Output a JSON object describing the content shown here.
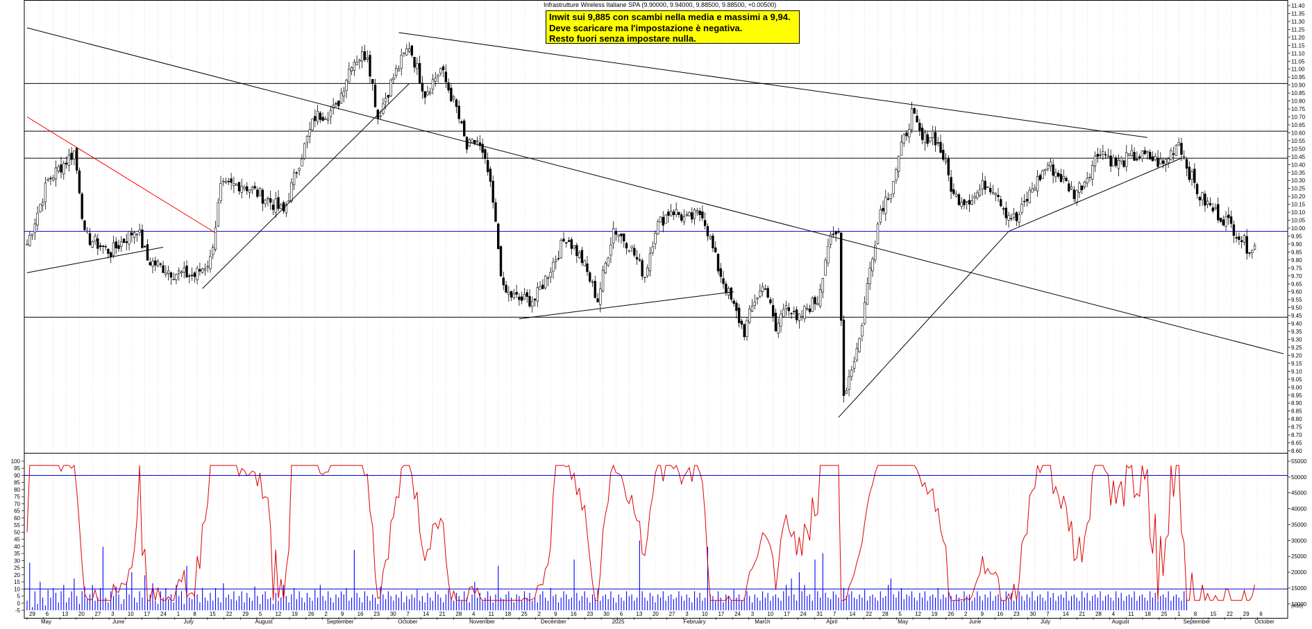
{
  "chart_data": [
    {
      "type": "candlestick",
      "title": "Infrastrutture Wireless Italiane SPA (9.90000, 9.94000, 9.88500, 9.88500, +0.00500)",
      "ylim": [
        8.6,
        11.4
      ],
      "y_tick_step": 0.05,
      "y_tick_labels": [
        "11.40",
        "11.35",
        "11.30",
        "11.25",
        "11.20",
        "11.15",
        "11.10",
        "11.05",
        "11.00",
        "10.95",
        "10.90",
        "10.85",
        "10.80",
        "10.75",
        "10.70",
        "10.65",
        "10.60",
        "10.55",
        "10.50",
        "10.45",
        "10.40",
        "10.35",
        "10.30",
        "10.25",
        "10.20",
        "10.15",
        "10.10",
        "10.05",
        "10.00",
        "9.95",
        "9.90",
        "9.85",
        "9.80",
        "9.75",
        "9.70",
        "9.65",
        "9.60",
        "9.55",
        "9.50",
        "9.45",
        "9.40",
        "9.35",
        "9.30",
        "9.25",
        "9.20",
        "9.15",
        "9.10",
        "9.05",
        "9.00",
        "8.95",
        "8.90",
        "8.85",
        "8.80",
        "8.75",
        "8.70",
        "8.65",
        "8.60"
      ],
      "grid": true,
      "horizontal_levels": [
        {
          "value": 10.91,
          "color": "#000000"
        },
        {
          "value": 10.61,
          "color": "#000000"
        },
        {
          "value": 10.44,
          "color": "#000000"
        },
        {
          "value": 9.98,
          "color": "#0000cc"
        },
        {
          "value": 9.44,
          "color": "#000000"
        }
      ],
      "trendlines": [
        {
          "from": {
            "day": 0,
            "price": 11.26
          },
          "to": {
            "day": 480,
            "price": 9.21
          },
          "color": "#000000"
        },
        {
          "from": {
            "day": 142,
            "price": 11.23
          },
          "to": {
            "day": 428,
            "price": 10.57
          },
          "color": "#000000"
        },
        {
          "from": {
            "day": 0,
            "price": 10.7
          },
          "to": {
            "day": 72,
            "price": 9.97
          },
          "color": "#ff0000"
        },
        {
          "from": {
            "day": 0,
            "price": 9.72
          },
          "to": {
            "day": 52,
            "price": 9.88
          },
          "color": "#000000"
        },
        {
          "from": {
            "day": 67,
            "price": 9.62
          },
          "to": {
            "day": 146,
            "price": 10.91
          },
          "color": "#000000"
        },
        {
          "from": {
            "day": 188,
            "price": 9.43
          },
          "to": {
            "day": 270,
            "price": 9.6
          },
          "color": "#000000"
        },
        {
          "from": {
            "day": 310,
            "price": 8.81
          },
          "to": {
            "day": 375,
            "price": 9.98
          },
          "color": "#000000"
        },
        {
          "from": {
            "day": 375,
            "price": 9.98
          },
          "to": {
            "day": 441,
            "price": 10.44
          },
          "color": "#000000"
        }
      ],
      "price_anchors": [
        [
          0,
          9.9
        ],
        [
          8,
          10.3
        ],
        [
          18,
          10.48
        ],
        [
          20,
          10.25
        ],
        [
          22,
          9.95
        ],
        [
          32,
          9.85
        ],
        [
          42,
          10.0
        ],
        [
          46,
          9.8
        ],
        [
          56,
          9.72
        ],
        [
          64,
          9.7
        ],
        [
          70,
          9.8
        ],
        [
          74,
          10.25
        ],
        [
          82,
          10.28
        ],
        [
          92,
          10.18
        ],
        [
          98,
          10.1
        ],
        [
          104,
          10.42
        ],
        [
          110,
          10.7
        ],
        [
          118,
          10.75
        ],
        [
          124,
          11.05
        ],
        [
          130,
          11.1
        ],
        [
          134,
          10.7
        ],
        [
          140,
          10.95
        ],
        [
          146,
          11.15
        ],
        [
          152,
          10.85
        ],
        [
          158,
          11.0
        ],
        [
          164,
          10.75
        ],
        [
          168,
          10.5
        ],
        [
          172,
          10.55
        ],
        [
          176,
          10.35
        ],
        [
          178,
          10.15
        ],
        [
          182,
          9.6
        ],
        [
          188,
          9.55
        ],
        [
          194,
          9.55
        ],
        [
          200,
          9.75
        ],
        [
          206,
          9.95
        ],
        [
          212,
          9.8
        ],
        [
          218,
          9.55
        ],
        [
          224,
          10.0
        ],
        [
          230,
          9.9
        ],
        [
          236,
          9.7
        ],
        [
          240,
          10.0
        ],
        [
          246,
          10.12
        ],
        [
          252,
          10.05
        ],
        [
          258,
          10.1
        ],
        [
          264,
          9.75
        ],
        [
          270,
          9.5
        ],
        [
          274,
          9.35
        ],
        [
          278,
          9.55
        ],
        [
          282,
          9.65
        ],
        [
          286,
          9.35
        ],
        [
          290,
          9.55
        ],
        [
          294,
          9.4
        ],
        [
          298,
          9.5
        ],
        [
          302,
          9.55
        ],
        [
          306,
          9.9
        ],
        [
          310,
          9.97
        ],
        [
          312,
          8.95
        ],
        [
          318,
          9.3
        ],
        [
          322,
          9.75
        ],
        [
          326,
          10.12
        ],
        [
          330,
          10.25
        ],
        [
          334,
          10.5
        ],
        [
          338,
          10.72
        ],
        [
          342,
          10.55
        ],
        [
          346,
          10.6
        ],
        [
          350,
          10.45
        ],
        [
          354,
          10.2
        ],
        [
          358,
          10.18
        ],
        [
          362,
          10.2
        ],
        [
          366,
          10.28
        ],
        [
          370,
          10.25
        ],
        [
          374,
          10.1
        ],
        [
          378,
          10.05
        ],
        [
          384,
          10.25
        ],
        [
          390,
          10.4
        ],
        [
          396,
          10.3
        ],
        [
          400,
          10.22
        ],
        [
          404,
          10.3
        ],
        [
          410,
          10.5
        ],
        [
          416,
          10.4
        ],
        [
          422,
          10.45
        ],
        [
          428,
          10.45
        ],
        [
          434,
          10.4
        ],
        [
          440,
          10.55
        ],
        [
          444,
          10.35
        ],
        [
          448,
          10.2
        ],
        [
          454,
          10.1
        ],
        [
          458,
          10.05
        ],
        [
          462,
          9.98
        ],
        [
          466,
          9.885
        ]
      ],
      "oscillator": {
        "ylim": [
          -5,
          100
        ],
        "y_tick_labels": [
          "100",
          "95",
          "90",
          "85",
          "80",
          "75",
          "70",
          "65",
          "60",
          "55",
          "50",
          "45",
          "40",
          "35",
          "30",
          "25",
          "20",
          "15",
          "10",
          "5",
          "0",
          "-5"
        ],
        "upper_line": 90,
        "lower_line": 10,
        "color": "#dd0000",
        "period_days": 21
      },
      "volume": {
        "ylim": [
          8000,
          55000
        ],
        "y_tick_labels": [
          "55000",
          "50000",
          "45000",
          "40000",
          "35000",
          "30000",
          "25000",
          "20000",
          "15000",
          "10000"
        ],
        "unit_label": "(X10)",
        "color": "#0000ff",
        "values": [
          11000,
          23000,
          9000,
          14000,
          10000,
          17000,
          12000,
          9500,
          14500,
          12000,
          15000,
          13500,
          10500,
          14000,
          16000,
          10500,
          12000,
          14000,
          18000,
          12500,
          10000,
          14000,
          15500,
          11500,
          13000,
          16000,
          11000,
          12000,
          15000,
          28000,
          12000,
          10500,
          14000,
          12500,
          15500,
          13000,
          10000,
          11500,
          17000,
          13000,
          20000,
          12000,
          10500,
          14000,
          12000,
          19000,
          11500,
          13000,
          16500,
          11000,
          10000,
          14000,
          12000,
          15000,
          11500,
          13000,
          10500,
          16000,
          12500,
          14000,
          10000,
          22000,
          12000,
          11500,
          14000,
          13000,
          10500,
          15000,
          12000,
          11000,
          13500,
          11000,
          15000,
          12000,
          10500,
          16500,
          12000,
          13000,
          11500,
          14000,
          11000,
          12500,
          14000,
          10500,
          13500,
          12000,
          11000,
          15500,
          12500,
          10000,
          13000,
          14000,
          11500,
          12000,
          10000,
          13500,
          11000,
          12000,
          16000,
          12500,
          10500,
          13000,
          15000,
          11500,
          14000,
          12000,
          10500,
          13500,
          12000,
          11000,
          14500,
          12000,
          16000,
          12500,
          11000,
          14000,
          12000,
          10500,
          13000,
          12000,
          14000,
          13000,
          15000,
          11000,
          12000,
          27000,
          13500,
          12000,
          10500,
          14000,
          12500,
          11000,
          13000,
          12000,
          10000,
          15500,
          13000,
          11500,
          14000,
          12500,
          11000,
          13000,
          12000,
          14000,
          10500,
          12500,
          11500,
          13000,
          12000,
          14500,
          11000,
          12500,
          10500,
          13500,
          12000,
          11000,
          14000,
          13000,
          12000,
          10500,
          13000,
          14500,
          12000,
          11000,
          13500,
          12500,
          11000,
          14000,
          12000,
          10500,
          13000,
          17000,
          12000,
          13500,
          11000,
          12000,
          14000,
          12500,
          10500,
          13000,
          22000,
          12000,
          11500,
          13000,
          14000,
          12000,
          10500,
          13000,
          12500,
          11000,
          14000,
          12000,
          13500,
          11000,
          12000,
          10500,
          13000,
          14000,
          12000,
          11000,
          15000,
          12500,
          13000,
          10500,
          12000,
          14000,
          13000,
          11500,
          12000,
          24000,
          13500,
          11000,
          12500,
          14000,
          12000,
          10500,
          13000,
          12000,
          14500,
          11000,
          12500,
          13000,
          11500,
          14000,
          12000,
          10500,
          13000,
          12000,
          11000,
          14000,
          12500,
          13000,
          11000,
          12000,
          30000,
          14000,
          12000,
          11000,
          13500,
          12500,
          10500,
          13000,
          12000,
          14000,
          11000,
          12500,
          13000,
          11500,
          12000,
          14000,
          12500,
          11000,
          13000,
          12000,
          10500,
          14000,
          12000,
          13500,
          11000,
          12000,
          28000,
          13000,
          12500,
          11000,
          14000,
          12000,
          10500,
          13000,
          12500,
          11000,
          14500,
          12000,
          13000,
          11000,
          12000,
          14000,
          12500,
          10500,
          13000,
          12000,
          11000,
          14000,
          12000,
          13500,
          11000,
          12500,
          13000,
          12000,
          11000,
          14000,
          16000,
          12500,
          18000,
          13000,
          11000,
          20000,
          14000,
          16000,
          12500,
          13000,
          11000,
          24000,
          14000,
          12000,
          26000,
          13500,
          12000,
          11500,
          14000,
          13000,
          12000,
          11000,
          15000,
          12500,
          13000,
          14000,
          12000,
          11500,
          13000,
          12000,
          14500,
          11000,
          12500,
          13000,
          12000,
          11000,
          14000,
          12000,
          12500,
          16000,
          18000,
          13000,
          12000,
          14000,
          15000,
          11500,
          13000,
          12500,
          14000,
          12000,
          11000,
          13500,
          12000,
          14000,
          11000,
          12500,
          13000,
          12000,
          15000,
          11500,
          13000,
          12000,
          14000,
          12500,
          11000,
          13000,
          12000,
          11000,
          14000,
          12500,
          13000,
          11000,
          12000,
          14000,
          12500,
          11000,
          13000,
          12000,
          14000,
          11000,
          12500,
          13000,
          12000,
          11000,
          14000,
          12000,
          13500,
          11000,
          12000,
          14000,
          12500,
          11000,
          13000,
          12000,
          14000,
          11000,
          12500,
          13000,
          12000,
          11000,
          14000,
          12000,
          13500,
          11000,
          12500,
          13000,
          12000,
          14000,
          11000,
          12500,
          13000,
          12000,
          11000,
          14000,
          12000,
          13500,
          11000,
          12500,
          13000,
          12000,
          14000,
          11000,
          12500,
          13000,
          12000,
          11000,
          14000,
          12000,
          13500,
          11000,
          12500,
          13000,
          12000,
          14000,
          11000,
          12500,
          13000,
          12000,
          11000,
          14000,
          12000,
          13500,
          11000,
          12500,
          13000,
          12000,
          14000,
          11000,
          12500,
          13000,
          12000,
          11000,
          14000,
          12000
        ]
      },
      "x_day_labels": [
        "29",
        "6",
        "13",
        "20",
        "27",
        "3",
        "10",
        "17",
        "24",
        "1",
        "8",
        "15",
        "22",
        "29",
        "5",
        "12",
        "19",
        "26",
        "2",
        "9",
        "16",
        "23",
        "30",
        "7",
        "14",
        "21",
        "28",
        "4",
        "11",
        "18",
        "25",
        "2",
        "9",
        "16",
        "23",
        "30",
        "6",
        "13",
        "20",
        "27",
        "3",
        "10",
        "17",
        "24",
        "3",
        "10",
        "17",
        "24",
        "31",
        "7",
        "14",
        "22",
        "28",
        "5",
        "12",
        "19",
        "26",
        "2",
        "9",
        "16",
        "23",
        "30",
        "7",
        "14",
        "21",
        "28",
        "4",
        "11",
        "18",
        "25",
        "1",
        "8",
        "15",
        "22",
        "29",
        "6"
      ],
      "x_month_labels": [
        "May",
        "June",
        "July",
        "August",
        "September",
        "October",
        "November",
        "December",
        "2025",
        "February",
        "March",
        "April",
        "May",
        "June",
        "July",
        "August",
        "September",
        "October"
      ],
      "total_days": 480
    }
  ],
  "annotation": {
    "lines": [
      "Inwit sui 9,885 con scambi nella media e massimi a 9,94.",
      "Deve scaricare ma l'impostazione è negativa.",
      "Resto fuori senza impostare nulla."
    ]
  },
  "volume_unit": "(X10)"
}
